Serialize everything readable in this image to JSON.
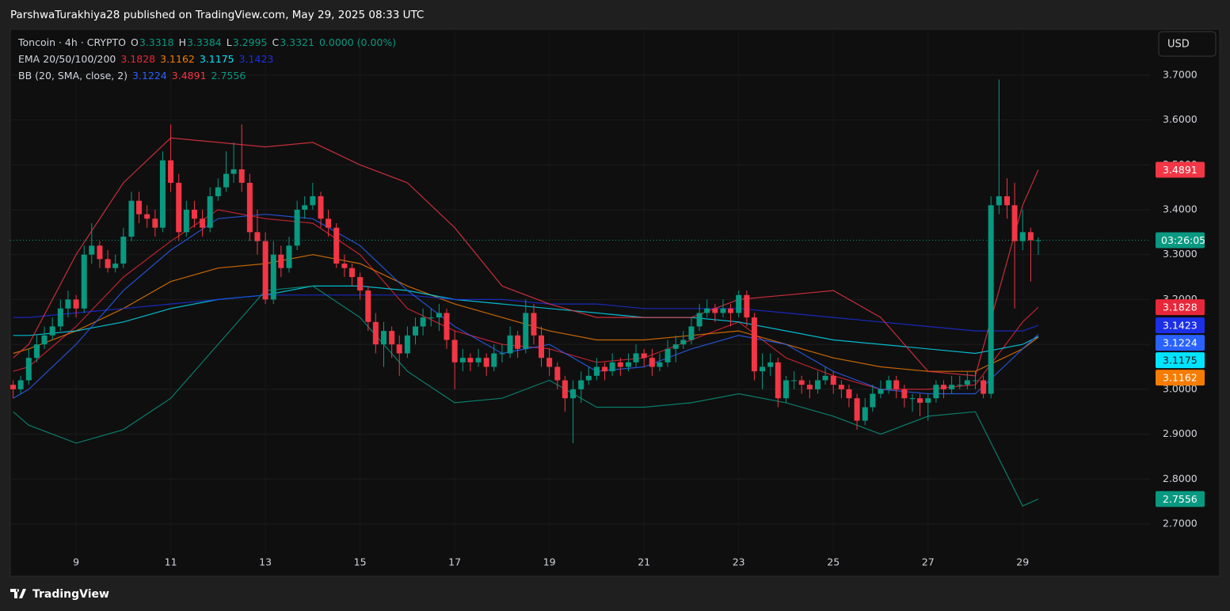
{
  "header": "ParshwaTurakhiya28 published on TradingView.com, May 29, 2025 08:33 UTC",
  "footer": "TradingView",
  "chart_data": {
    "type": "candlestick",
    "title": "Toncoin · 4h · CRYPTO",
    "ohlc_labels": [
      "O",
      "H",
      "L",
      "C"
    ],
    "change": "0.0000 (0.00%)",
    "currency": "USD",
    "countdown": "03:26:05",
    "up_color": "#089981",
    "down_color": "#f23645",
    "x": [
      7.67,
      7.83,
      8,
      8.17,
      8.33,
      8.5,
      8.67,
      8.83,
      9,
      9.17,
      9.33,
      9.5,
      9.67,
      9.83,
      10,
      10.17,
      10.33,
      10.5,
      10.67,
      10.83,
      11,
      11.17,
      11.33,
      11.5,
      11.67,
      11.83,
      12,
      12.17,
      12.33,
      12.5,
      12.67,
      12.83,
      13,
      13.17,
      13.33,
      13.5,
      13.67,
      13.83,
      14,
      14.17,
      14.33,
      14.5,
      14.67,
      14.83,
      15,
      15.17,
      15.33,
      15.5,
      15.67,
      15.83,
      16,
      16.17,
      16.33,
      16.5,
      16.67,
      16.83,
      17,
      17.17,
      17.33,
      17.5,
      17.67,
      17.83,
      18,
      18.17,
      18.33,
      18.5,
      18.67,
      18.83,
      19,
      19.17,
      19.33,
      19.5,
      19.67,
      19.83,
      20,
      20.17,
      20.33,
      20.5,
      20.67,
      20.83,
      21,
      21.17,
      21.33,
      21.5,
      21.67,
      21.83,
      22,
      22.17,
      22.33,
      22.5,
      22.67,
      22.83,
      23,
      23.17,
      23.33,
      23.5,
      23.67,
      23.83,
      24,
      24.17,
      24.33,
      24.5,
      24.67,
      24.83,
      25,
      25.17,
      25.33,
      25.5,
      25.67,
      25.83,
      26,
      26.17,
      26.33,
      26.5,
      26.67,
      26.83,
      27,
      27.17,
      27.33,
      27.5,
      27.67,
      27.83,
      28,
      28.17,
      28.33,
      28.5,
      28.67,
      28.83,
      29,
      29.17,
      29.33
    ],
    "ohlc": [
      [
        3.01,
        3.02,
        2.98,
        3.0
      ],
      [
        3.0,
        3.03,
        2.99,
        3.02
      ],
      [
        3.02,
        3.09,
        3.01,
        3.07
      ],
      [
        3.07,
        3.12,
        3.06,
        3.1
      ],
      [
        3.1,
        3.14,
        3.09,
        3.12
      ],
      [
        3.12,
        3.16,
        3.11,
        3.14
      ],
      [
        3.14,
        3.2,
        3.13,
        3.18
      ],
      [
        3.18,
        3.22,
        3.16,
        3.2
      ],
      [
        3.2,
        3.21,
        3.16,
        3.18
      ],
      [
        3.18,
        3.32,
        3.17,
        3.3
      ],
      [
        3.3,
        3.37,
        3.28,
        3.32
      ],
      [
        3.32,
        3.33,
        3.27,
        3.29
      ],
      [
        3.29,
        3.31,
        3.26,
        3.27
      ],
      [
        3.27,
        3.3,
        3.26,
        3.28
      ],
      [
        3.28,
        3.36,
        3.27,
        3.34
      ],
      [
        3.34,
        3.44,
        3.33,
        3.42
      ],
      [
        3.42,
        3.44,
        3.37,
        3.39
      ],
      [
        3.39,
        3.41,
        3.36,
        3.38
      ],
      [
        3.38,
        3.4,
        3.34,
        3.36
      ],
      [
        3.36,
        3.53,
        3.35,
        3.51
      ],
      [
        3.51,
        3.59,
        3.44,
        3.46
      ],
      [
        3.46,
        3.48,
        3.33,
        3.35
      ],
      [
        3.35,
        3.42,
        3.34,
        3.4
      ],
      [
        3.4,
        3.42,
        3.36,
        3.38
      ],
      [
        3.38,
        3.4,
        3.34,
        3.36
      ],
      [
        3.36,
        3.45,
        3.35,
        3.43
      ],
      [
        3.43,
        3.47,
        3.42,
        3.45
      ],
      [
        3.45,
        3.53,
        3.44,
        3.48
      ],
      [
        3.48,
        3.55,
        3.46,
        3.49
      ],
      [
        3.49,
        3.59,
        3.44,
        3.46
      ],
      [
        3.46,
        3.48,
        3.33,
        3.35
      ],
      [
        3.35,
        3.4,
        3.3,
        3.33
      ],
      [
        3.33,
        3.35,
        3.19,
        3.2
      ],
      [
        3.2,
        3.33,
        3.19,
        3.3
      ],
      [
        3.3,
        3.32,
        3.25,
        3.27
      ],
      [
        3.27,
        3.34,
        3.26,
        3.32
      ],
      [
        3.32,
        3.42,
        3.31,
        3.4
      ],
      [
        3.4,
        3.43,
        3.38,
        3.41
      ],
      [
        3.41,
        3.46,
        3.4,
        3.43
      ],
      [
        3.43,
        3.44,
        3.36,
        3.38
      ],
      [
        3.38,
        3.4,
        3.34,
        3.36
      ],
      [
        3.36,
        3.37,
        3.27,
        3.28
      ],
      [
        3.28,
        3.3,
        3.25,
        3.27
      ],
      [
        3.27,
        3.28,
        3.23,
        3.25
      ],
      [
        3.25,
        3.26,
        3.2,
        3.22
      ],
      [
        3.22,
        3.23,
        3.13,
        3.15
      ],
      [
        3.15,
        3.17,
        3.08,
        3.1
      ],
      [
        3.1,
        3.15,
        3.05,
        3.13
      ],
      [
        3.13,
        3.14,
        3.07,
        3.1
      ],
      [
        3.1,
        3.12,
        3.03,
        3.08
      ],
      [
        3.08,
        3.14,
        3.07,
        3.12
      ],
      [
        3.12,
        3.16,
        3.1,
        3.14
      ],
      [
        3.14,
        3.18,
        3.12,
        3.16
      ],
      [
        3.16,
        3.18,
        3.14,
        3.16
      ],
      [
        3.16,
        3.19,
        3.13,
        3.17
      ],
      [
        3.17,
        3.18,
        3.09,
        3.11
      ],
      [
        3.11,
        3.13,
        3.0,
        3.06
      ],
      [
        3.06,
        3.09,
        3.04,
        3.07
      ],
      [
        3.07,
        3.08,
        3.04,
        3.06
      ],
      [
        3.06,
        3.09,
        3.05,
        3.07
      ],
      [
        3.07,
        3.08,
        3.03,
        3.05
      ],
      [
        3.05,
        3.1,
        3.04,
        3.08
      ],
      [
        3.08,
        3.1,
        3.06,
        3.08
      ],
      [
        3.08,
        3.14,
        3.07,
        3.12
      ],
      [
        3.12,
        3.13,
        3.07,
        3.09
      ],
      [
        3.09,
        3.2,
        3.08,
        3.17
      ],
      [
        3.17,
        3.19,
        3.1,
        3.12
      ],
      [
        3.12,
        3.14,
        3.05,
        3.07
      ],
      [
        3.07,
        3.09,
        3.03,
        3.05
      ],
      [
        3.05,
        3.06,
        3.0,
        3.02
      ],
      [
        3.02,
        3.03,
        2.95,
        2.98
      ],
      [
        2.98,
        3.02,
        2.88,
        3.0
      ],
      [
        3.0,
        3.04,
        2.97,
        3.02
      ],
      [
        3.02,
        3.05,
        3.01,
        3.03
      ],
      [
        3.03,
        3.07,
        3.02,
        3.05
      ],
      [
        3.05,
        3.06,
        3.02,
        3.04
      ],
      [
        3.04,
        3.08,
        3.03,
        3.06
      ],
      [
        3.06,
        3.07,
        3.03,
        3.05
      ],
      [
        3.05,
        3.08,
        3.04,
        3.06
      ],
      [
        3.06,
        3.1,
        3.05,
        3.08
      ],
      [
        3.08,
        3.09,
        3.05,
        3.07
      ],
      [
        3.07,
        3.09,
        3.03,
        3.05
      ],
      [
        3.05,
        3.08,
        3.04,
        3.06
      ],
      [
        3.06,
        3.11,
        3.05,
        3.09
      ],
      [
        3.09,
        3.12,
        3.06,
        3.1
      ],
      [
        3.1,
        3.13,
        3.09,
        3.11
      ],
      [
        3.11,
        3.16,
        3.1,
        3.14
      ],
      [
        3.14,
        3.19,
        3.13,
        3.17
      ],
      [
        3.17,
        3.2,
        3.16,
        3.18
      ],
      [
        3.18,
        3.19,
        3.15,
        3.17
      ],
      [
        3.17,
        3.2,
        3.16,
        3.18
      ],
      [
        3.18,
        3.19,
        3.14,
        3.17
      ],
      [
        3.17,
        3.22,
        3.16,
        3.21
      ],
      [
        3.21,
        3.22,
        3.14,
        3.16
      ],
      [
        3.16,
        3.17,
        3.02,
        3.04
      ],
      [
        3.04,
        3.08,
        3.0,
        3.05
      ],
      [
        3.05,
        3.08,
        3.03,
        3.06
      ],
      [
        3.06,
        3.07,
        2.96,
        2.98
      ],
      [
        2.98,
        3.03,
        2.97,
        3.02
      ],
      [
        3.02,
        3.04,
        3.0,
        3.02
      ],
      [
        3.02,
        3.03,
        2.99,
        3.01
      ],
      [
        3.01,
        3.02,
        2.98,
        3.0
      ],
      [
        3.0,
        3.04,
        2.99,
        3.02
      ],
      [
        3.02,
        3.05,
        3.01,
        3.03
      ],
      [
        3.03,
        3.04,
        2.99,
        3.01
      ],
      [
        3.01,
        3.02,
        2.98,
        3.0
      ],
      [
        3.0,
        3.01,
        2.96,
        2.98
      ],
      [
        2.98,
        2.99,
        2.91,
        2.93
      ],
      [
        2.93,
        2.98,
        2.92,
        2.96
      ],
      [
        2.96,
        3.01,
        2.95,
        2.99
      ],
      [
        2.99,
        3.02,
        2.98,
        3.0
      ],
      [
        3.0,
        3.03,
        2.99,
        3.02
      ],
      [
        3.02,
        3.03,
        2.98,
        3.0
      ],
      [
        3.0,
        3.01,
        2.96,
        2.98
      ],
      [
        2.98,
        2.99,
        2.95,
        2.98
      ],
      [
        2.98,
        2.99,
        2.94,
        2.97
      ],
      [
        2.97,
        2.99,
        2.93,
        2.98
      ],
      [
        2.98,
        3.02,
        2.97,
        3.01
      ],
      [
        3.01,
        3.02,
        2.98,
        3.0
      ],
      [
        3.0,
        3.03,
        2.99,
        3.01
      ],
      [
        3.01,
        3.03,
        3.0,
        3.01
      ],
      [
        3.01,
        3.04,
        3.0,
        3.02
      ],
      [
        3.02,
        3.04,
        3.0,
        3.02
      ],
      [
        3.02,
        3.03,
        2.98,
        2.99
      ],
      [
        2.99,
        3.43,
        2.98,
        3.41
      ],
      [
        3.41,
        3.69,
        3.39,
        3.43
      ],
      [
        3.43,
        3.47,
        3.38,
        3.41
      ],
      [
        3.41,
        3.46,
        3.18,
        3.33
      ],
      [
        3.33,
        3.4,
        3.31,
        3.35
      ],
      [
        3.35,
        3.36,
        3.24,
        3.3318
      ],
      [
        3.3318,
        3.3384,
        3.2995,
        3.3321
      ]
    ],
    "line_x": [
      7.67,
      8,
      9,
      10,
      11,
      12,
      13,
      14,
      15,
      16,
      17,
      18,
      19,
      20,
      21,
      22,
      23,
      24,
      25,
      26,
      27,
      28,
      29,
      29.33
    ],
    "indicators": [
      {
        "label": "EMA 20/50/100/200",
        "series": [
          {
            "color": "#e8283a",
            "values": [
              3.04,
              3.05,
              3.14,
              3.25,
              3.33,
              3.4,
              3.38,
              3.37,
              3.3,
              3.18,
              3.13,
              3.1,
              3.09,
              3.06,
              3.07,
              3.11,
              3.15,
              3.07,
              3.03,
              3.0,
              3.0,
              3.01,
              3.15,
              3.1828
            ]
          },
          {
            "color": "#f57c00",
            "values": [
              3.08,
              3.09,
              3.13,
              3.18,
              3.24,
              3.27,
              3.28,
              3.3,
              3.28,
              3.23,
              3.19,
              3.16,
              3.13,
              3.11,
              3.11,
              3.12,
              3.13,
              3.1,
              3.07,
              3.05,
              3.04,
              3.04,
              3.09,
              3.1162
            ]
          },
          {
            "color": "#00e5ff",
            "values": [
              3.12,
              3.12,
              3.13,
              3.15,
              3.18,
              3.2,
              3.21,
              3.23,
              3.23,
              3.22,
              3.2,
              3.19,
              3.18,
              3.17,
              3.16,
              3.16,
              3.15,
              3.13,
              3.11,
              3.1,
              3.09,
              3.08,
              3.1,
              3.1175
            ]
          },
          {
            "color": "#1c2fe6",
            "values": [
              3.16,
              3.16,
              3.17,
              3.18,
              3.19,
              3.2,
              3.21,
              3.21,
              3.21,
              3.21,
              3.2,
              3.2,
              3.19,
              3.19,
              3.18,
              3.18,
              3.18,
              3.17,
              3.16,
              3.15,
              3.14,
              3.13,
              3.13,
              3.1423
            ]
          }
        ]
      },
      {
        "label": "BB (20, SMA, close, 2)",
        "series": [
          {
            "color": "#2962ff",
            "values": [
              2.98,
              3.0,
              3.1,
              3.22,
              3.31,
              3.38,
              3.39,
              3.38,
              3.32,
              3.22,
              3.14,
              3.08,
              3.1,
              3.04,
              3.05,
              3.09,
              3.12,
              3.1,
              3.04,
              3.0,
              2.99,
              2.99,
              3.09,
              3.1224
            ]
          },
          {
            "color": "#f23645",
            "values": [
              3.07,
              3.1,
              3.3,
              3.46,
              3.56,
              3.55,
              3.54,
              3.55,
              3.5,
              3.46,
              3.36,
              3.23,
              3.19,
              3.16,
              3.16,
              3.16,
              3.2,
              3.21,
              3.22,
              3.16,
              3.04,
              3.03,
              3.41,
              3.4891
            ]
          },
          {
            "color": "#089981",
            "values": [
              2.95,
              2.92,
              2.88,
              2.91,
              2.98,
              3.1,
              3.22,
              3.23,
              3.16,
              3.04,
              2.97,
              2.98,
              3.02,
              2.96,
              2.96,
              2.97,
              2.99,
              2.97,
              2.94,
              2.9,
              2.94,
              2.95,
              2.74,
              2.7556
            ]
          }
        ]
      }
    ],
    "xlim": [
      7.61,
      31.69
    ],
    "xticks": [
      9,
      11,
      13,
      15,
      17,
      19,
      21,
      23,
      25,
      27,
      29
    ],
    "ylim": [
      2.633,
      3.802
    ],
    "yticks": [
      {
        "value": 2.7,
        "label": "2.7000"
      },
      {
        "value": 2.8,
        "label": "2.8000"
      },
      {
        "value": 2.9,
        "label": "2.9000"
      },
      {
        "value": 3.0,
        "label": "3.0000"
      },
      {
        "value": 3.1,
        "label": "3.1000"
      },
      {
        "value": 3.2,
        "label": "3.2000"
      },
      {
        "value": 3.3,
        "label": "3.3000"
      },
      {
        "value": 3.4,
        "label": "3.4000"
      },
      {
        "value": 3.5,
        "label": "3.5000"
      },
      {
        "value": 3.6,
        "label": "3.6000"
      },
      {
        "value": 3.7,
        "label": "3.7000"
      }
    ],
    "grid": true
  }
}
